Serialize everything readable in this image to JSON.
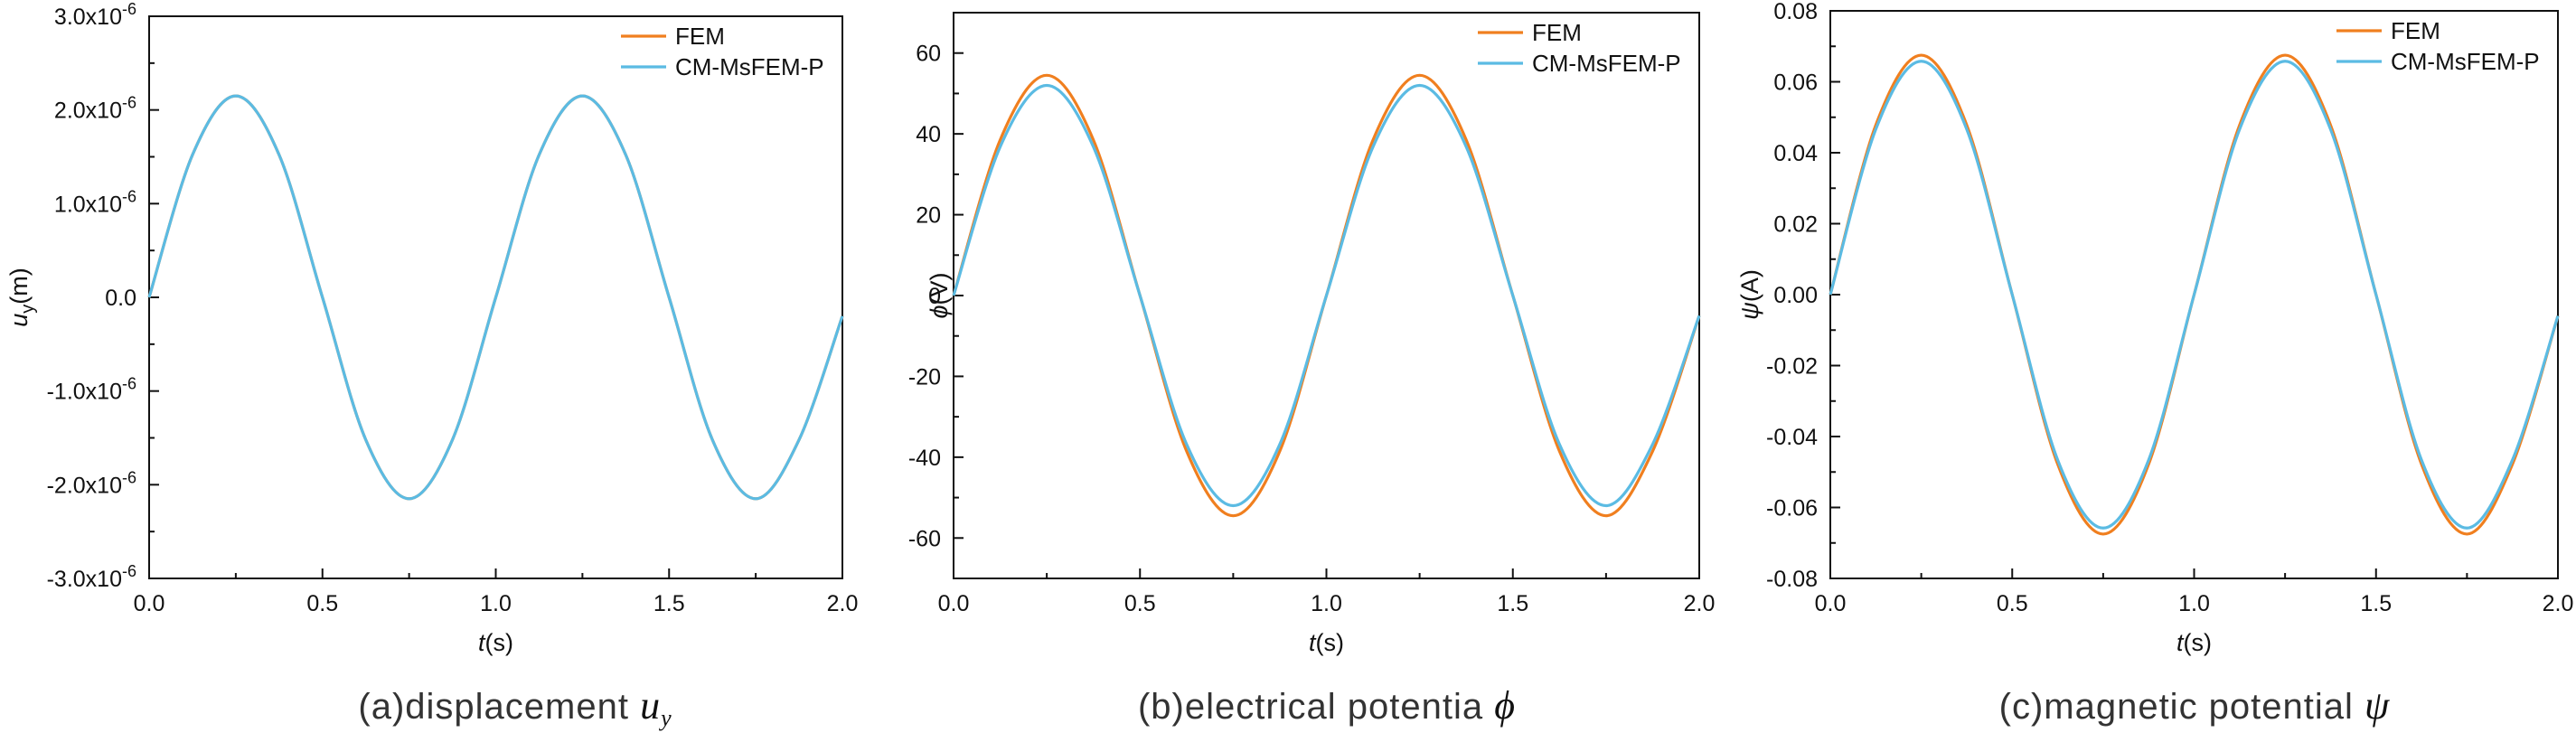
{
  "chart_data": [
    {
      "type": "line",
      "panel": "a",
      "caption": {
        "text": "(a)displacement ",
        "symbol": "u",
        "symbol_sub": "y"
      },
      "xlabel": {
        "var": "t",
        "unit": "(s)"
      },
      "ylabel": {
        "var": "u",
        "sub": "y",
        "unit": "(m)"
      },
      "xlim": [
        0,
        2
      ],
      "ylim": [
        -3e-06,
        3e-06
      ],
      "x_ticks": [
        0,
        0.5,
        1,
        1.5,
        2
      ],
      "x_tick_labels": [
        "0.0",
        "0.5",
        "1.0",
        "1.5",
        "2.0"
      ],
      "y_ticks": [
        -3e-06,
        -2e-06,
        -1e-06,
        0,
        1e-06,
        2e-06,
        3e-06
      ],
      "y_tick_labels": [
        {
          "base": "-3.0x10",
          "exp": "-6"
        },
        {
          "base": "-2.0x10",
          "exp": "-6"
        },
        {
          "base": "-1.0x10",
          "exp": "-6"
        },
        {
          "base": "0.0",
          "exp": ""
        },
        {
          "base": "1.0x10",
          "exp": "-6"
        },
        {
          "base": "2.0x10",
          "exp": "-6"
        },
        {
          "base": "3.0x10",
          "exp": "-6"
        }
      ],
      "legend": "top-right",
      "grid": false,
      "x": [
        0,
        0.125,
        0.25,
        0.375,
        0.5,
        0.625,
        0.75,
        0.875,
        1.0,
        1.125,
        1.25,
        1.375,
        1.5,
        1.625,
        1.75,
        1.875,
        2.0
      ],
      "series": [
        {
          "name": "FEM",
          "color": "#F07F1F",
          "values": [
            0,
            1.52e-06,
            2.15e-06,
            1.52e-06,
            0,
            -1.52e-06,
            -2.15e-06,
            -1.52e-06,
            0,
            1.52e-06,
            2.15e-06,
            1.52e-06,
            0,
            -1.52e-06,
            -2.15e-06,
            -1.52e-06,
            -2e-07
          ]
        },
        {
          "name": "CM-MsFEM-P",
          "color": "#5BBBE3",
          "values": [
            0,
            1.52e-06,
            2.15e-06,
            1.52e-06,
            0,
            -1.52e-06,
            -2.15e-06,
            -1.52e-06,
            0,
            1.52e-06,
            2.15e-06,
            1.52e-06,
            0,
            -1.52e-06,
            -2.15e-06,
            -1.52e-06,
            -2e-07
          ]
        }
      ]
    },
    {
      "type": "line",
      "panel": "b",
      "caption": {
        "text": "(b)electrical potentia ",
        "symbol": "ϕ",
        "symbol_sub": ""
      },
      "xlabel": {
        "var": "t",
        "unit": "(s)"
      },
      "ylabel": {
        "var": "ϕ",
        "sub": "",
        "unit": "(V)"
      },
      "xlim": [
        0,
        2
      ],
      "ylim": [
        -70,
        70
      ],
      "x_ticks": [
        0,
        0.5,
        1,
        1.5,
        2
      ],
      "x_tick_labels": [
        "0.0",
        "0.5",
        "1.0",
        "1.5",
        "2.0"
      ],
      "y_ticks": [
        -60,
        -40,
        -20,
        0,
        20,
        40,
        60
      ],
      "y_tick_labels": [
        {
          "base": "-60",
          "exp": ""
        },
        {
          "base": "-40",
          "exp": ""
        },
        {
          "base": "-20",
          "exp": ""
        },
        {
          "base": "0",
          "exp": ""
        },
        {
          "base": "20",
          "exp": ""
        },
        {
          "base": "40",
          "exp": ""
        },
        {
          "base": "60",
          "exp": ""
        }
      ],
      "legend": "top-right",
      "grid": false,
      "x": [
        0,
        0.125,
        0.25,
        0.375,
        0.5,
        0.625,
        0.75,
        0.875,
        1.0,
        1.125,
        1.25,
        1.375,
        1.5,
        1.625,
        1.75,
        1.875,
        2.0
      ],
      "series": [
        {
          "name": "FEM",
          "color": "#F07F1F",
          "values": [
            0,
            38.5,
            54.5,
            38.5,
            0,
            -38.5,
            -54.5,
            -38.5,
            0,
            38.5,
            54.5,
            38.5,
            0,
            -38.5,
            -54.5,
            -38.5,
            -5
          ]
        },
        {
          "name": "CM-MsFEM-P",
          "color": "#5BBBE3",
          "values": [
            0,
            36.8,
            52.0,
            36.8,
            0,
            -36.8,
            -52.0,
            -36.8,
            0,
            36.8,
            52.0,
            36.8,
            0,
            -36.8,
            -52.0,
            -36.8,
            -5
          ]
        }
      ]
    },
    {
      "type": "line",
      "panel": "c",
      "caption": {
        "text": "(c)magnetic potential ",
        "symbol": "ψ",
        "symbol_sub": ""
      },
      "xlabel": {
        "var": "t",
        "unit": "(s)"
      },
      "ylabel": {
        "var": "ψ",
        "sub": "",
        "unit": "(A)"
      },
      "xlim": [
        0,
        2
      ],
      "ylim": [
        -0.08,
        0.08
      ],
      "x_ticks": [
        0,
        0.5,
        1,
        1.5,
        2
      ],
      "x_tick_labels": [
        "0.0",
        "0.5",
        "1.0",
        "1.5",
        "2.0"
      ],
      "y_ticks": [
        -0.08,
        -0.06,
        -0.04,
        -0.02,
        0,
        0.02,
        0.04,
        0.06,
        0.08
      ],
      "y_tick_labels": [
        {
          "base": "-0.08",
          "exp": ""
        },
        {
          "base": "-0.06",
          "exp": ""
        },
        {
          "base": "-0.04",
          "exp": ""
        },
        {
          "base": "-0.02",
          "exp": ""
        },
        {
          "base": "0.00",
          "exp": ""
        },
        {
          "base": "0.02",
          "exp": ""
        },
        {
          "base": "0.04",
          "exp": ""
        },
        {
          "base": "0.06",
          "exp": ""
        },
        {
          "base": "0.08",
          "exp": ""
        }
      ],
      "legend": "top-right",
      "grid": false,
      "x": [
        0,
        0.125,
        0.25,
        0.375,
        0.5,
        0.625,
        0.75,
        0.875,
        1.0,
        1.125,
        1.25,
        1.375,
        1.5,
        1.625,
        1.75,
        1.875,
        2.0
      ],
      "series": [
        {
          "name": "FEM",
          "color": "#F07F1F",
          "values": [
            0,
            0.0478,
            0.0675,
            0.0478,
            0,
            -0.0478,
            -0.0675,
            -0.0478,
            0,
            0.0478,
            0.0675,
            0.0478,
            0,
            -0.0478,
            -0.0675,
            -0.0478,
            -0.006
          ]
        },
        {
          "name": "CM-MsFEM-P",
          "color": "#5BBBE3",
          "values": [
            0,
            0.0466,
            0.0658,
            0.0466,
            0,
            -0.0466,
            -0.0658,
            -0.0466,
            0,
            0.0466,
            0.0658,
            0.0466,
            0,
            -0.0466,
            -0.0658,
            -0.0466,
            -0.006
          ]
        }
      ]
    }
  ]
}
